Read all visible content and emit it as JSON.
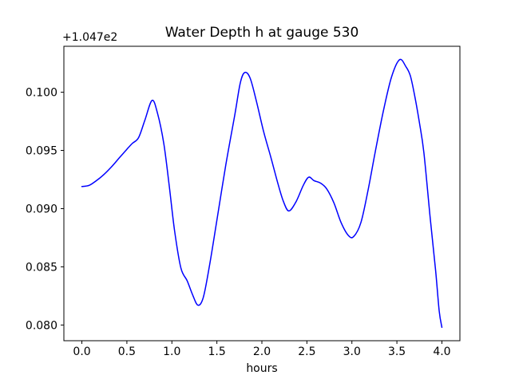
{
  "chart_data": {
    "type": "line",
    "title": "Water Depth h at gauge 530",
    "xlabel": "hours",
    "ylabel": "",
    "y_offset_text": "+1.047e2",
    "xlim": [
      -0.2,
      4.2
    ],
    "ylim": [
      0.07865,
      0.10395
    ],
    "xticks": [
      0.0,
      0.5,
      1.0,
      1.5,
      2.0,
      2.5,
      3.0,
      3.5,
      4.0
    ],
    "x_tick_labels": [
      "0.0",
      "0.5",
      "1.0",
      "1.5",
      "2.0",
      "2.5",
      "3.0",
      "3.5",
      "4.0"
    ],
    "yticks": [
      0.08,
      0.085,
      0.09,
      0.095,
      0.1
    ],
    "y_tick_labels": [
      "0.080",
      "0.085",
      "0.090",
      "0.095",
      "0.100"
    ],
    "grid": false,
    "legend": "none",
    "line_color": "#0000ff",
    "axis_color": "#000000",
    "background_color": "#ffffff",
    "series": [
      {
        "name": "h",
        "x": [
          0.0,
          0.08,
          0.16,
          0.24,
          0.33,
          0.42,
          0.5,
          0.56,
          0.63,
          0.7,
          0.78,
          0.84,
          0.91,
          0.97,
          1.03,
          1.1,
          1.17,
          1.23,
          1.29,
          1.35,
          1.42,
          1.5,
          1.6,
          1.7,
          1.76,
          1.81,
          1.87,
          1.94,
          2.02,
          2.1,
          2.18,
          2.24,
          2.3,
          2.38,
          2.46,
          2.52,
          2.58,
          2.65,
          2.72,
          2.8,
          2.88,
          2.96,
          3.02,
          3.1,
          3.18,
          3.26,
          3.35,
          3.44,
          3.53,
          3.6,
          3.65,
          3.7,
          3.75,
          3.8,
          3.87,
          3.93,
          3.97,
          4.0
        ],
        "y": [
          0.0919,
          0.092,
          0.0924,
          0.0929,
          0.0936,
          0.0944,
          0.0951,
          0.0956,
          0.0961,
          0.0976,
          0.0993,
          0.0982,
          0.0956,
          0.092,
          0.0881,
          0.0849,
          0.0838,
          0.0826,
          0.0817,
          0.0824,
          0.0852,
          0.089,
          0.0938,
          0.0981,
          0.1008,
          0.1017,
          0.1012,
          0.0992,
          0.0966,
          0.0944,
          0.0921,
          0.0906,
          0.0898,
          0.0906,
          0.092,
          0.0927,
          0.0924,
          0.0922,
          0.0917,
          0.0905,
          0.0888,
          0.0877,
          0.0876,
          0.0888,
          0.0916,
          0.0949,
          0.0984,
          0.1013,
          0.1028,
          0.1022,
          0.1014,
          0.0996,
          0.0974,
          0.0948,
          0.0892,
          0.0847,
          0.0812,
          0.0798
        ]
      }
    ]
  }
}
